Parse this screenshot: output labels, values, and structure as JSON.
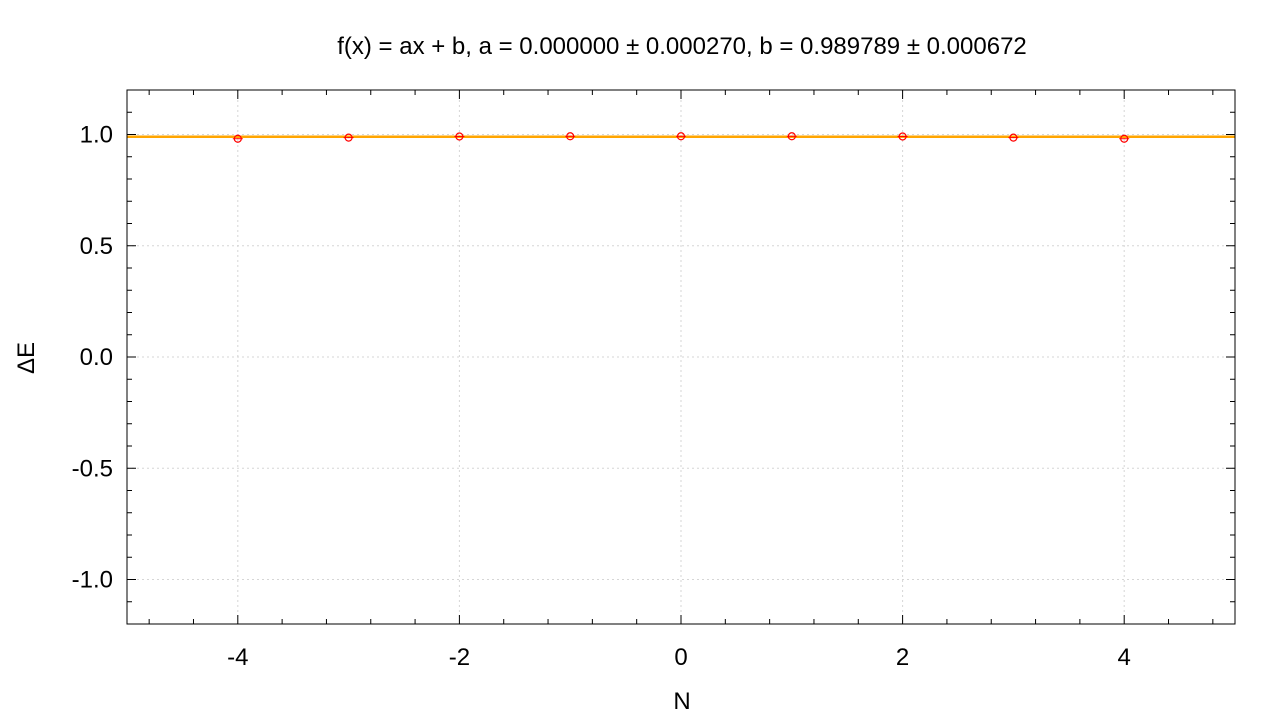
{
  "chart_data": {
    "type": "scatter",
    "title": "f(x) = ax + b,   a = 0.000000 ± 0.000270, b = 0.989789 ± 0.000672",
    "xlabel": "N",
    "ylabel": "ΔE",
    "xlim": [
      -5,
      5
    ],
    "ylim": [
      -1.2,
      1.2
    ],
    "x_ticks": [
      -4,
      -2,
      0,
      2,
      4
    ],
    "x_tick_labels": [
      "-4",
      "-2",
      "0",
      "2",
      "4"
    ],
    "y_ticks": [
      -1.0,
      -0.5,
      0.0,
      0.5,
      1.0
    ],
    "y_tick_labels": [
      "-1.0",
      "-0.5",
      "0.0",
      "0.5",
      "1.0"
    ],
    "grid": true,
    "series": [
      {
        "x": [
          -4,
          -3,
          -2,
          -1,
          0,
          1,
          2,
          3,
          4
        ],
        "y": [
          0.981,
          0.986,
          0.991,
          0.992,
          0.992,
          0.992,
          0.991,
          0.986,
          0.981
        ],
        "yerr": [
          0.002,
          0.002,
          0.002,
          0.002,
          0.002,
          0.002,
          0.002,
          0.002,
          0.002
        ],
        "color": "#ff0000",
        "marker": "circle"
      }
    ],
    "fit": {
      "a": 0.0,
      "b": 0.989789,
      "color": "#ffa500"
    }
  }
}
